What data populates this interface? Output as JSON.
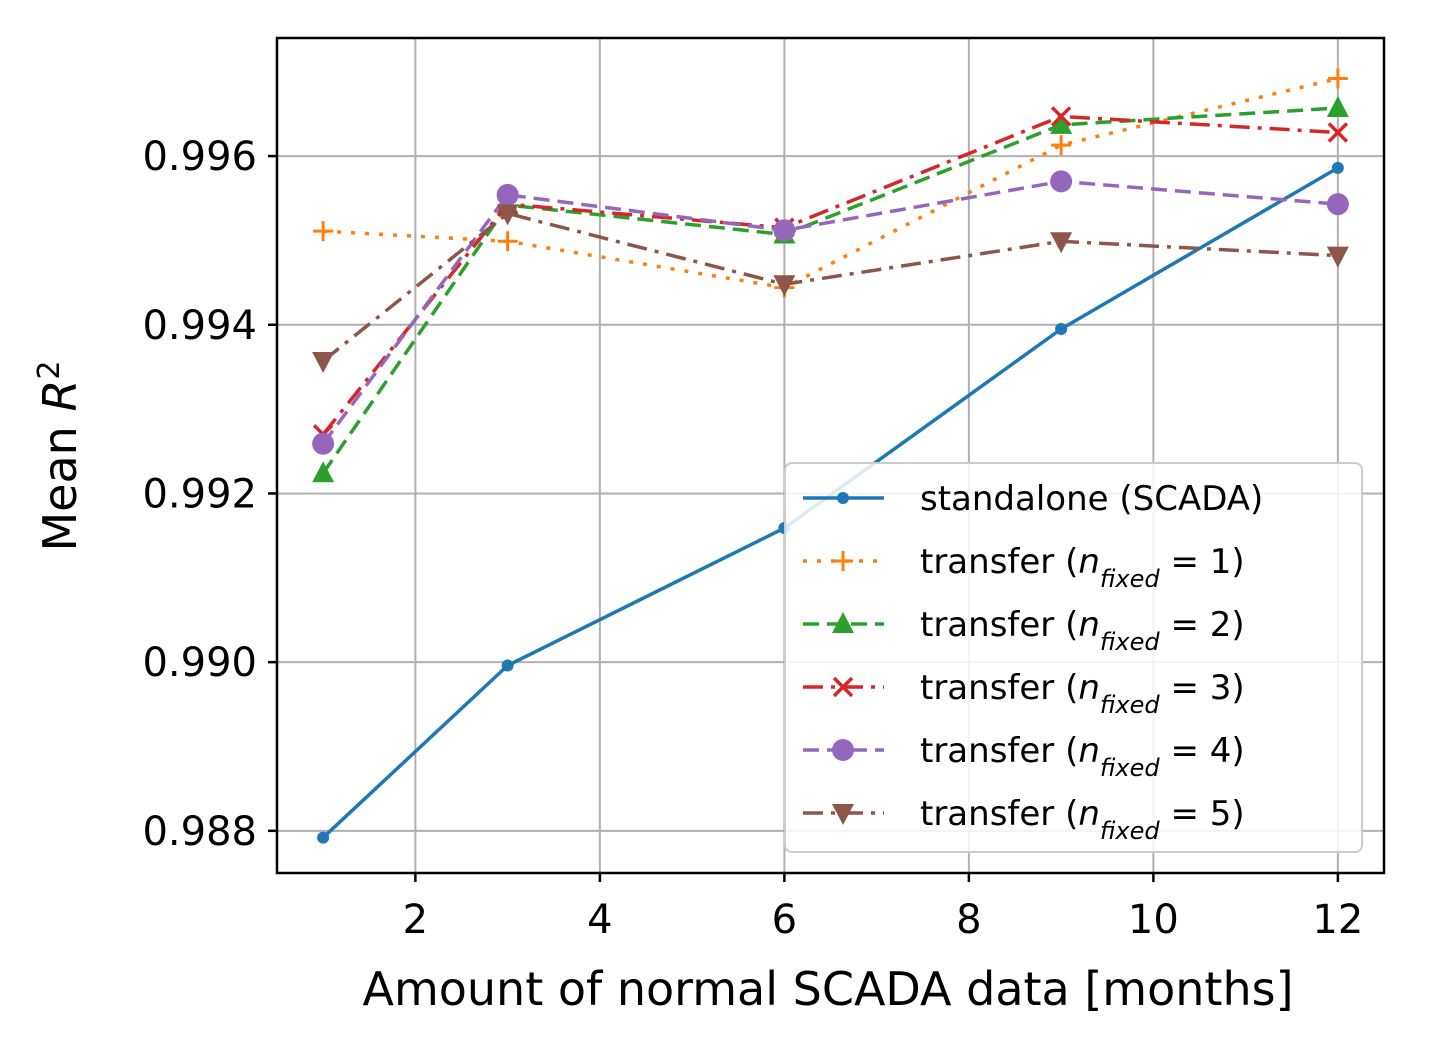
{
  "chart_data": {
    "type": "line",
    "title": "",
    "xlabel": "Amount of normal SCADA data [months]",
    "ylabel_prefix": "Mean ",
    "ylabel_var": "R",
    "ylabel_sup": "2",
    "xlim": [
      0.5,
      12.5
    ],
    "ylim": [
      0.9875,
      0.9974
    ],
    "xticks": [
      2,
      4,
      6,
      8,
      10,
      12
    ],
    "xtick_labels": [
      "2",
      "4",
      "6",
      "8",
      "10",
      "12"
    ],
    "yticks": [
      0.988,
      0.99,
      0.992,
      0.994,
      0.996
    ],
    "ytick_labels": [
      "0.988",
      "0.990",
      "0.992",
      "0.994",
      "0.996"
    ],
    "grid": true,
    "legend_position": "lower-right",
    "x": [
      1,
      3,
      6,
      9,
      12
    ],
    "series": [
      {
        "name": "standalone (SCADA)",
        "prefix": "standalone (SCADA)",
        "n": "",
        "color": "#1f77b4",
        "dash": "solid",
        "marker": "dot",
        "values": [
          0.98792,
          0.98996,
          0.99159,
          0.99395,
          0.99586
        ]
      },
      {
        "name": "transfer (n_fixed = 1)",
        "prefix": "transfer (",
        "n": "1",
        "color": "#ff7f0e",
        "dash": "dotted",
        "marker": "plus",
        "values": [
          0.99511,
          0.99499,
          0.99444,
          0.99613,
          0.99692
        ]
      },
      {
        "name": "transfer (n_fixed = 2)",
        "prefix": "transfer (",
        "n": "2",
        "color": "#2ca02c",
        "dash": "dashed",
        "marker": "triangle-up",
        "values": [
          0.99224,
          0.99542,
          0.99507,
          0.99637,
          0.99657
        ]
      },
      {
        "name": "transfer (n_fixed = 3)",
        "prefix": "transfer (",
        "n": "3",
        "color": "#d62728",
        "dash": "dashdot",
        "marker": "x",
        "values": [
          0.9927,
          0.99543,
          0.99515,
          0.99647,
          0.99628
        ]
      },
      {
        "name": "transfer (n_fixed = 4)",
        "prefix": "transfer (",
        "n": "4",
        "color": "#9467bd",
        "dash": "dashed",
        "marker": "circle",
        "values": [
          0.99259,
          0.99554,
          0.99512,
          0.9957,
          0.99543
        ]
      },
      {
        "name": "transfer (n_fixed = 5)",
        "prefix": "transfer (",
        "n": "5",
        "color": "#8c564b",
        "dash": "dashdot",
        "marker": "triangle-down",
        "values": [
          0.99357,
          0.99532,
          0.99448,
          0.99499,
          0.99482
        ]
      }
    ],
    "legend_sub": "fixed",
    "legend_close": ")"
  }
}
